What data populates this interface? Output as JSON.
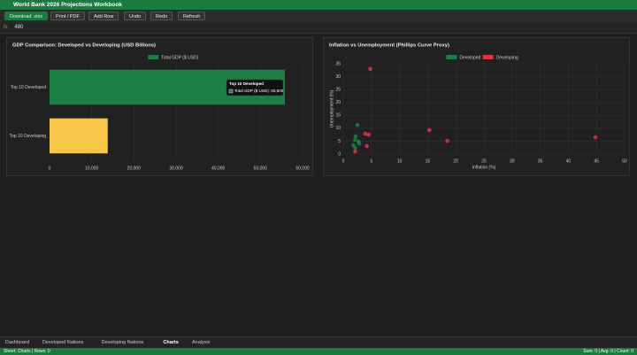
{
  "header": {
    "title": "World Bank 2026 Projections Workbook"
  },
  "toolbar": {
    "buttons": [
      "Download .xlsx",
      "Print / PDF",
      "Add Row",
      "Undo",
      "Redo",
      "Refresh"
    ]
  },
  "formula_bar": {
    "prefix": "fx",
    "value": "480"
  },
  "chart_data": [
    {
      "type": "bar",
      "orientation": "horizontal",
      "title": "GDP Comparison: Developed vs Developing (USD Billions)",
      "categories": [
        "Top 10 Developed",
        "Top 10 Developing"
      ],
      "series": [
        {
          "name": "Total GDP ($ USD)",
          "color": "#1b7f43",
          "colors": [
            "#1b7f43",
            "#f7c548"
          ],
          "values": [
            55800,
            13800
          ]
        }
      ],
      "xlim": [
        0,
        60000
      ],
      "xticks": [
        0,
        {
          "value": 10000,
          "label": "10,000"
        },
        {
          "value": 20000,
          "label": "20,000"
        },
        {
          "value": 30000,
          "label": "30,000"
        },
        {
          "value": 40000,
          "label": "40,000"
        },
        {
          "value": 50000,
          "label": "50,000"
        },
        {
          "value": 60000,
          "label": "60,000"
        }
      ],
      "grid": true,
      "legend": "top",
      "tooltip": {
        "title": "Top 10 Developed",
        "label": "Total GDP ($ USD): 55,800"
      }
    },
    {
      "type": "scatter",
      "title": "Inflation vs Unemployment (Phillips Curve Proxy)",
      "x_label": "Inflation (%)",
      "y_label": "Unemployment (%)",
      "series": [
        {
          "name": "Developed",
          "color": "#1b7f43",
          "x": [
            2.5,
            2.2,
            2.1,
            2.7,
            1.8,
            2.1,
            2.8
          ],
          "values": [
            11.3,
            6.9,
            5.5,
            4.8,
            3.4,
            2.4,
            4.1
          ]
        },
        {
          "name": "Developing",
          "color": "#dc3545",
          "x": [
            4.8,
            3.9,
            4.5,
            4.2,
            2.1,
            15.3,
            18.5,
            44.8
          ],
          "values": [
            33,
            7.9,
            7.5,
            3.1,
            1,
            9.3,
            5.1,
            6.5
          ]
        }
      ],
      "xlim": [
        0,
        50
      ],
      "xticks": [
        0,
        5,
        10,
        15,
        20,
        25,
        30,
        35,
        40,
        45,
        50
      ],
      "ylim": [
        0,
        35
      ],
      "yticks": [
        0,
        5,
        10,
        15,
        20,
        25,
        30,
        35
      ],
      "grid": true,
      "legend": "top"
    }
  ],
  "tabs": {
    "items": [
      "Dashboard",
      "Developed Nations",
      "Developing Nations",
      "Charts",
      "Analysis"
    ],
    "active": 3
  },
  "status": {
    "left": "Sheet: Charts | Rows: 0",
    "right": "Sum: 0 | Avg: 0 | Count: 0"
  }
}
